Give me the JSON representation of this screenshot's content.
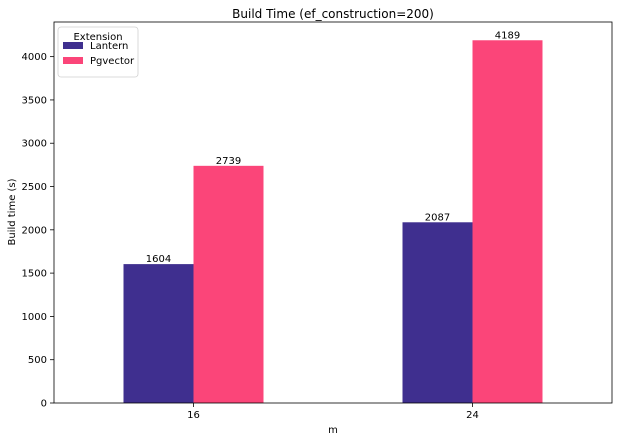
{
  "chart_data": {
    "type": "bar",
    "title": "Build Time (ef_construction=200)",
    "xlabel": "m",
    "ylabel": "Build time (s)",
    "categories": [
      "16",
      "24"
    ],
    "series": [
      {
        "name": "Lantern",
        "values": [
          1604,
          2087
        ],
        "color": "#3f2f8f"
      },
      {
        "name": "Pgvector",
        "values": [
          2739,
          4189
        ],
        "color": "#fb4579"
      }
    ],
    "data_labels": [
      [
        "1604",
        "2087"
      ],
      [
        "2739",
        "4189"
      ]
    ],
    "ylim": [
      0,
      4400
    ],
    "yticks": [
      0,
      500,
      1000,
      1500,
      2000,
      2500,
      3000,
      3500,
      4000
    ],
    "legend": {
      "title": "Extension",
      "position": "top-left"
    },
    "grid": false
  }
}
